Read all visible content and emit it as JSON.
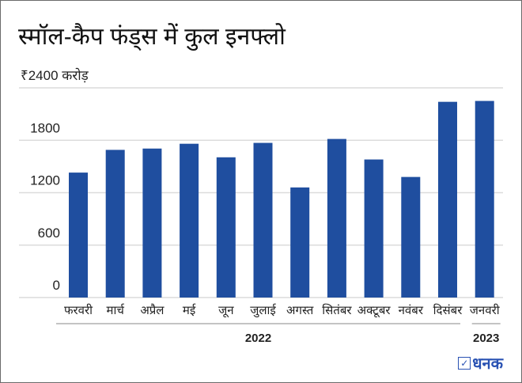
{
  "title": "स्मॉल-कैप फंड्स में कुल इनफ्लो",
  "logo": {
    "text": "धनक",
    "icon": "check-box-icon"
  },
  "chart_data": {
    "type": "bar",
    "title": "स्मॉल-कैप फंड्स में कुल इनफ्लो",
    "ylabel_unit": "₹2400 करोड़",
    "categories": [
      "फरवरी",
      "मार्च",
      "अप्रैल",
      "मई",
      "जून",
      "जुलाई",
      "अगस्त",
      "सितंबर",
      "अक्टूबर",
      "नवंबर",
      "दिसंबर",
      "जनवरी"
    ],
    "values": [
      1430,
      1690,
      1705,
      1760,
      1605,
      1770,
      1260,
      1815,
      1580,
      1380,
      2240,
      2250
    ],
    "yticks": [
      "0",
      "600",
      "1200",
      "1800"
    ],
    "ytick_values": [
      0,
      600,
      1200,
      1800,
      2400
    ],
    "ylim": [
      0,
      2400
    ],
    "grid": true,
    "year_groups": [
      {
        "label": "2022",
        "from": 0,
        "to": 10
      },
      {
        "label": "2023",
        "from": 11,
        "to": 11
      }
    ],
    "bar_color": "#1f4e9f",
    "grid_color": "#dcdcdc"
  }
}
